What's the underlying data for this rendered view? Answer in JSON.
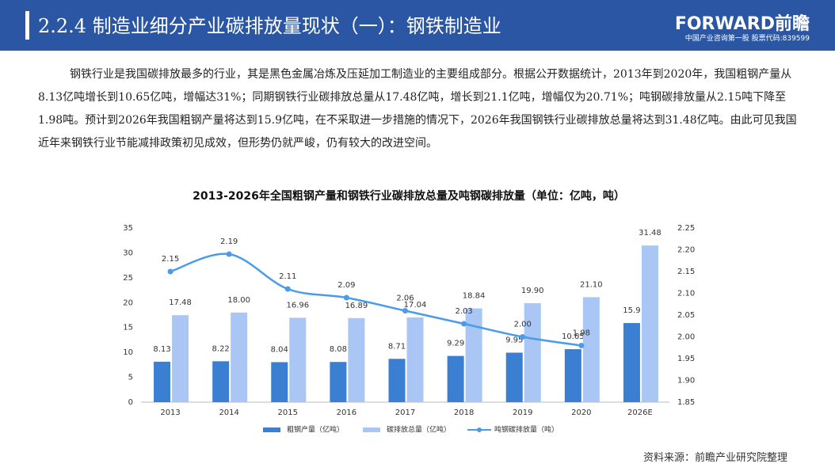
{
  "header": {
    "title": "2.2.4 制造业细分产业碳排放量现状（一）：钢铁制造业",
    "logo": "FORWARD前瞻",
    "logo_sub": "中国产业咨询第一股 股票代码:839599"
  },
  "paragraph": "钢铁行业是我国碳排放最多的行业，其是黑色金属冶炼及压延加工制造业的主要组成部分。根据公开数据统计，2013年到2020年，我国粗钢产量从8.13亿吨增长到10.65亿吨，增幅达31%；同期钢铁行业碳排放总量从17.48亿吨，增长到21.1亿吨，增幅仅为20.71%；吨钢碳排放量从2.15吨下降至1.98吨。预计到2026年我国粗钢产量将达到15.9亿吨，在不采取进一步措施的情况下，2026年我国钢铁行业碳排放总量将达到31.48亿吨。由此可见我国近年来钢铁行业节能减排政策初见成效，但形势仍就严峻，仍有较大的改进空间。",
  "source": "资料来源：前瞻产业研究院整理",
  "chart_data": {
    "type": "bar",
    "title": "2013-2026年全国粗钢产量和钢铁行业碳排放总量及吨钢碳排放量（单位：亿吨，吨）",
    "categories": [
      "2013",
      "2014",
      "2015",
      "2016",
      "2017",
      "2018",
      "2019",
      "2020",
      "2026E"
    ],
    "series": [
      {
        "name": "粗钢产量（亿吨）",
        "color": "#3a7fd2",
        "values": [
          8.13,
          8.22,
          8.04,
          8.08,
          8.71,
          9.29,
          9.95,
          10.65,
          15.9
        ]
      },
      {
        "name": "碳排放总量（亿吨）",
        "color": "#a9c6f4",
        "values": [
          17.48,
          18.0,
          16.96,
          16.89,
          17.04,
          18.84,
          19.9,
          21.1,
          31.48
        ],
        "value_labels": [
          "17.48",
          "18.00",
          "16.96",
          "16.89",
          "17.04",
          "18.84",
          "19.90",
          "21.10",
          "31.48"
        ]
      },
      {
        "name": "吨钢碳排放量（吨）",
        "color": "#4a9be8",
        "type": "line",
        "axis": "y2",
        "values": [
          2.15,
          2.19,
          2.11,
          2.09,
          2.06,
          2.03,
          2.0,
          1.98,
          null
        ],
        "value_labels": [
          "2.15",
          "2.19",
          "2.11",
          "2.09",
          "2.06",
          "2.03",
          "2.00",
          "1.98",
          null
        ]
      }
    ],
    "ylim": [
      0,
      35
    ],
    "yticks": [
      0,
      5,
      10,
      15,
      20,
      25,
      30,
      35
    ],
    "y2lim": [
      1.85,
      2.25
    ],
    "y2ticks": [
      1.85,
      {
        "value": 1.9,
        "label": "1.90"
      },
      1.95,
      {
        "value": 2.0,
        "label": "2.00"
      },
      2.05,
      {
        "value": 2.1,
        "label": "2.10"
      },
      2.15,
      {
        "value": 2.2,
        "label": "2.20"
      },
      2.25
    ],
    "legend": "bottom"
  }
}
